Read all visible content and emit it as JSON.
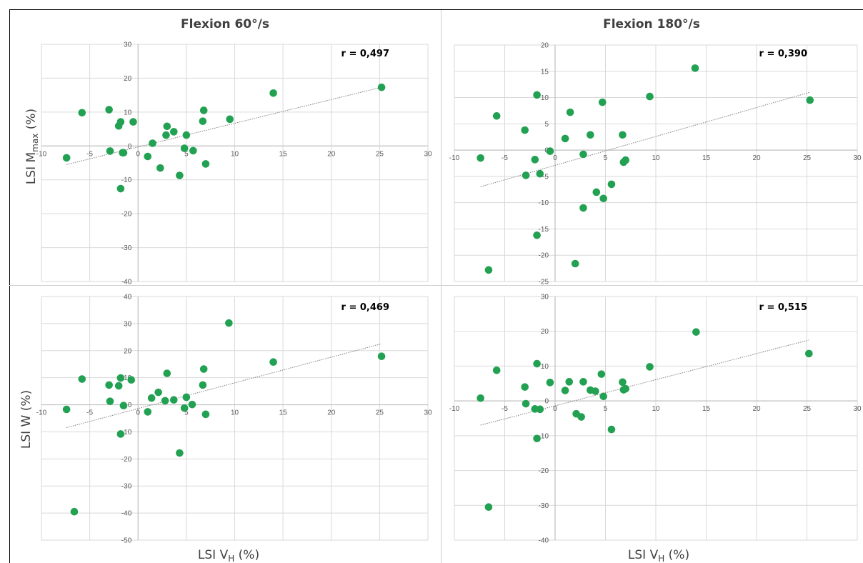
{
  "titles": {
    "left": "Flexion 60°/s",
    "right": "Flexion 180°/s"
  },
  "xlabel": {
    "text": "LSI V",
    "sub": "H",
    "unit": " (%)"
  },
  "ylabels": {
    "top": {
      "text": "LSI M",
      "sub": "max",
      "unit": " (%)"
    },
    "bottom": {
      "text": "LSI W (%)"
    }
  },
  "colors": {
    "points": "#22a152",
    "grid": "#d9d9d9",
    "axis": "#bfbfbf",
    "trend": "#7f7f7f",
    "border": "#000000"
  },
  "chart_data": [
    {
      "type": "scatter",
      "r_label": "r = 0,497",
      "xlim": [
        -10,
        30
      ],
      "ylim": [
        -40,
        30
      ],
      "xticks": [
        -10,
        -5,
        0,
        5,
        10,
        15,
        20,
        25,
        30
      ],
      "yticks": [
        -40,
        -30,
        -20,
        -10,
        0,
        10,
        20,
        30
      ],
      "grid": true,
      "x": [
        -7.4,
        -5.8,
        -3.0,
        -2.9,
        -2.0,
        -1.8,
        -1.8,
        -1.6,
        -1.5,
        -0.5,
        1.0,
        1.5,
        2.3,
        2.9,
        3.0,
        3.7,
        4.3,
        4.8,
        5.0,
        5.7,
        6.7,
        6.8,
        7.0,
        9.5,
        14.0,
        25.2
      ],
      "y": [
        -3.5,
        9.8,
        10.7,
        -1.5,
        5.9,
        -12.6,
        7.1,
        -2.0,
        -2.0,
        7.1,
        -3.1,
        0.8,
        -6.5,
        3.2,
        5.8,
        4.2,
        -8.7,
        -0.7,
        3.2,
        -1.4,
        7.3,
        10.5,
        -5.3,
        7.9,
        15.6,
        17.3
      ],
      "trend": {
        "slope": 0.7,
        "intercept": -0.3,
        "x_range": [
          -7.4,
          25.2
        ]
      }
    },
    {
      "type": "scatter",
      "r_label": "r = 0,390",
      "xlim": [
        -10,
        30
      ],
      "ylim": [
        -25,
        20
      ],
      "xticks": [
        -10,
        -5,
        0,
        5,
        10,
        15,
        20,
        25,
        30
      ],
      "yticks": [
        -25,
        -20,
        -15,
        -10,
        -5,
        0,
        5,
        10,
        15,
        20
      ],
      "grid": true,
      "x": [
        -7.4,
        -6.6,
        -5.8,
        -3.0,
        -2.9,
        -2.0,
        -1.8,
        -1.8,
        -1.5,
        -0.5,
        1.0,
        1.5,
        2.0,
        2.8,
        2.8,
        3.5,
        4.1,
        4.7,
        4.8,
        5.6,
        6.7,
        6.8,
        7.0,
        9.4,
        13.9,
        25.3
      ],
      "y": [
        -1.5,
        -22.8,
        6.5,
        3.8,
        -4.8,
        -1.8,
        -16.2,
        10.5,
        -4.5,
        -0.2,
        2.2,
        7.2,
        -21.6,
        -11.0,
        -0.8,
        2.9,
        -8.0,
        9.1,
        -9.2,
        -6.5,
        2.9,
        -2.3,
        -1.9,
        10.2,
        15.6,
        9.5
      ],
      "trend": {
        "slope": 0.55,
        "intercept": -2.9,
        "x_range": [
          -7.4,
          25.3
        ]
      }
    },
    {
      "type": "scatter",
      "r_label": "r = 0,469",
      "xlim": [
        -10,
        30
      ],
      "ylim": [
        -50,
        40
      ],
      "xticks": [
        -10,
        -5,
        0,
        5,
        10,
        15,
        20,
        25,
        30
      ],
      "yticks": [
        -50,
        -40,
        -30,
        -20,
        -10,
        0,
        10,
        20,
        30,
        40
      ],
      "grid": true,
      "x": [
        -7.4,
        -6.6,
        -5.8,
        -3.0,
        -2.9,
        -2.0,
        -1.8,
        -1.8,
        -1.5,
        -0.7,
        1.0,
        1.4,
        2.1,
        2.8,
        3.0,
        3.7,
        4.3,
        4.8,
        5.0,
        5.6,
        6.7,
        6.8,
        7.0,
        9.4,
        14.0,
        25.2
      ],
      "y": [
        -1.7,
        -39.5,
        9.5,
        7.3,
        1.3,
        7.0,
        9.9,
        -10.8,
        -0.3,
        9.2,
        -2.6,
        2.5,
        4.6,
        1.5,
        11.6,
        1.8,
        -17.8,
        -1.2,
        2.8,
        0.1,
        7.3,
        13.2,
        -3.5,
        30.2,
        15.8,
        17.9
      ],
      "trend": {
        "slope": 0.95,
        "intercept": -1.4,
        "x_range": [
          -7.4,
          25.2
        ]
      }
    },
    {
      "type": "scatter",
      "r_label": "r = 0,515",
      "xlim": [
        -10,
        30
      ],
      "ylim": [
        -40,
        30
      ],
      "xticks": [
        -10,
        -5,
        0,
        5,
        10,
        15,
        20,
        25,
        30
      ],
      "yticks": [
        -40,
        -30,
        -20,
        -10,
        0,
        10,
        20,
        30
      ],
      "grid": true,
      "x": [
        -7.4,
        -6.6,
        -5.8,
        -3.0,
        -2.9,
        -2.0,
        -1.8,
        -1.8,
        -1.5,
        -0.5,
        1.0,
        1.4,
        2.1,
        2.6,
        2.8,
        3.5,
        4.0,
        4.6,
        4.8,
        5.6,
        6.7,
        6.8,
        7.0,
        9.4,
        14.0,
        25.2
      ],
      "y": [
        0.8,
        -30.5,
        8.8,
        4.0,
        -0.8,
        -2.3,
        10.7,
        -10.8,
        -2.4,
        5.3,
        3.0,
        5.5,
        -3.7,
        -4.6,
        5.5,
        3.1,
        2.8,
        7.7,
        1.3,
        -8.2,
        5.4,
        3.2,
        3.5,
        9.8,
        19.8,
        13.6
      ],
      "trend": {
        "slope": 0.75,
        "intercept": -1.4,
        "x_range": [
          -7.4,
          25.2
        ]
      }
    }
  ]
}
